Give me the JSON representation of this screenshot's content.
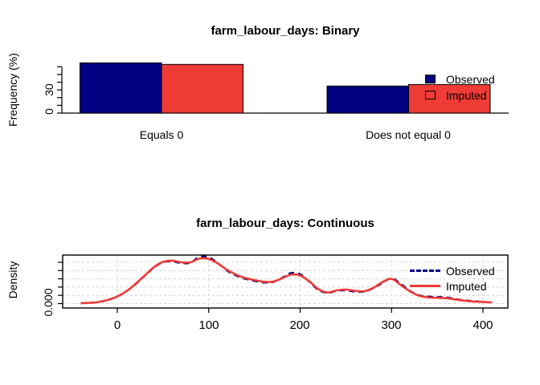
{
  "colors": {
    "observed": "#000080",
    "imputed": "#EE3B36",
    "grid": "#D4D4D4",
    "axis": "#000000",
    "background": "#FFFFFF"
  },
  "chart_data": [
    {
      "type": "bar",
      "title": "farm_labour_days: Binary",
      "ylabel": "Frequency (%)",
      "categories": [
        "Equals 0",
        "Does not equal 0"
      ],
      "series": [
        {
          "name": "Observed",
          "values": [
            65,
            35
          ]
        },
        {
          "name": "Imputed",
          "values": [
            63,
            37
          ]
        }
      ],
      "ylim": [
        0,
        60
      ],
      "yticks": [
        0,
        10,
        20,
        30,
        40,
        50,
        60
      ],
      "ytick_labels_shown": [
        "0",
        "30"
      ],
      "legend_position": "right-overlapping-second-group",
      "grid": false
    },
    {
      "type": "line",
      "title": "farm_labour_days: Continuous",
      "ylabel": "Density",
      "xlabel": "",
      "xlim": [
        -60,
        427
      ],
      "ylim": [
        0,
        0.0118
      ],
      "xticks": [
        0,
        100,
        200,
        300,
        400
      ],
      "xtick_labels": [
        "0",
        "100",
        "200",
        "300",
        "400"
      ],
      "ytick_labels_shown": [
        "0.000"
      ],
      "yticks": [
        0.0,
        0.002,
        0.004,
        0.006,
        0.008,
        0.01
      ],
      "grid": true,
      "legend_position": "inside-top-right",
      "x": [
        -40,
        -30,
        -20,
        -10,
        0,
        10,
        20,
        30,
        40,
        50,
        60,
        70,
        80,
        90,
        100,
        110,
        120,
        130,
        140,
        150,
        160,
        170,
        180,
        190,
        200,
        210,
        220,
        230,
        240,
        250,
        260,
        270,
        280,
        290,
        300,
        310,
        320,
        330,
        340,
        350,
        360,
        370,
        380,
        390,
        400,
        410
      ],
      "series": [
        {
          "name": "Observed",
          "style": "dashed",
          "values": [
            0.0001,
            0.0002,
            0.0004,
            0.0009,
            0.0017,
            0.003,
            0.0047,
            0.0067,
            0.0087,
            0.01,
            0.0102,
            0.0098,
            0.0099,
            0.0113,
            0.0112,
            0.0098,
            0.008,
            0.0068,
            0.006,
            0.0055,
            0.0051,
            0.0052,
            0.0062,
            0.0074,
            0.0071,
            0.0053,
            0.0033,
            0.0026,
            0.0031,
            0.0032,
            0.0029,
            0.0029,
            0.0037,
            0.005,
            0.0061,
            0.0048,
            0.0031,
            0.002,
            0.0017,
            0.0016,
            0.0015,
            0.0011,
            0.0008,
            0.0006,
            0.0004,
            0.0003
          ]
        },
        {
          "name": "Imputed",
          "style": "solid",
          "values": [
            0.0001,
            0.0002,
            0.0004,
            0.0009,
            0.0017,
            0.003,
            0.0048,
            0.0068,
            0.0088,
            0.0101,
            0.0104,
            0.01,
            0.01,
            0.0109,
            0.0108,
            0.0097,
            0.0082,
            0.007,
            0.0062,
            0.0057,
            0.0053,
            0.0053,
            0.0061,
            0.007,
            0.0068,
            0.0054,
            0.0035,
            0.0027,
            0.0032,
            0.0034,
            0.0031,
            0.003,
            0.0038,
            0.0052,
            0.006,
            0.0045,
            0.003,
            0.0019,
            0.0015,
            0.0014,
            0.0013,
            0.001,
            0.0007,
            0.0005,
            0.0004,
            0.0003
          ]
        }
      ]
    }
  ]
}
